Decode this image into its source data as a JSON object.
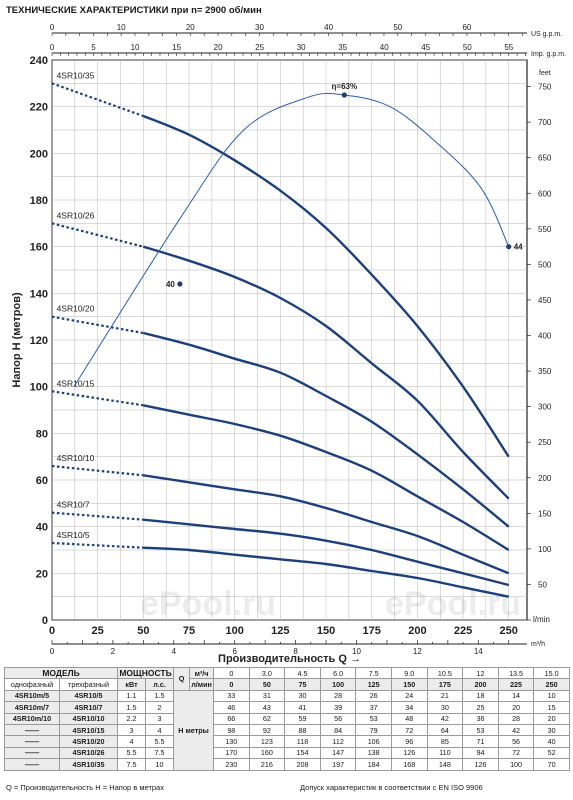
{
  "title": "ТЕХНИЧЕСКИЕ ХАРАКТЕРИСТИКИ при n= 2900 об/мин",
  "chart_data": {
    "type": "line",
    "title": "ТЕХНИЧЕСКИЕ ХАРАКТЕРИСТИКИ при n= 2900 об/мин",
    "xlabel": "Производительность Q",
    "ylabel": "Напор H  (метров)",
    "xlim": [
      0,
      260
    ],
    "ylim": [
      0,
      240
    ],
    "x_ticks": [
      0,
      25,
      50,
      75,
      100,
      125,
      150,
      175,
      200,
      225,
      250
    ],
    "y_ticks": [
      0,
      20,
      40,
      60,
      80,
      100,
      120,
      140,
      160,
      180,
      200,
      220,
      240
    ],
    "x_unit": "l/min",
    "grid": true,
    "secondary_axes": {
      "m3h": {
        "label": "m³/h",
        "ticks": [
          0,
          2,
          4,
          6,
          8,
          10,
          12,
          14
        ]
      },
      "us_gpm": {
        "label": "US g.p.m.",
        "ticks": [
          0,
          10,
          20,
          30,
          40,
          50,
          60
        ]
      },
      "imp_gpm": {
        "label": "Imp. g.p.m.",
        "ticks": [
          0,
          5,
          10,
          15,
          20,
          25,
          30,
          35,
          40,
          45,
          50,
          55
        ]
      },
      "feet": {
        "label": "feet",
        "ticks": [
          0,
          50,
          100,
          150,
          200,
          250,
          300,
          350,
          400,
          450,
          500,
          550,
          600,
          650,
          700,
          750
        ]
      }
    },
    "x": [
      0,
      50,
      75,
      100,
      125,
      150,
      175,
      200,
      225,
      250
    ],
    "series": [
      {
        "name": "4SR10/35",
        "values": [
          230,
          216,
          208,
          197,
          184,
          168,
          148,
          126,
          100,
          70
        ]
      },
      {
        "name": "4SR10/26",
        "values": [
          170,
          160,
          154,
          147,
          138,
          126,
          110,
          94,
          72,
          52
        ]
      },
      {
        "name": "4SR10/20",
        "values": [
          130,
          123,
          118,
          112,
          106,
          96,
          85,
          71,
          56,
          40
        ]
      },
      {
        "name": "4SR10/15",
        "values": [
          98,
          92,
          88,
          84,
          79,
          72,
          64,
          53,
          42,
          30
        ]
      },
      {
        "name": "4SR10/10",
        "values": [
          66,
          62,
          59,
          56,
          53,
          48,
          42,
          36,
          28,
          20
        ]
      },
      {
        "name": "4SR10/7",
        "values": [
          46,
          43,
          41,
          39,
          37,
          34,
          30,
          25,
          20,
          15
        ]
      },
      {
        "name": "4SR10/5",
        "values": [
          33,
          31,
          30,
          28,
          26,
          24,
          21,
          18,
          14,
          10
        ]
      }
    ],
    "efficiency": {
      "points": [
        [
          12,
          100
        ],
        [
          70,
          172
        ],
        [
          105,
          210
        ],
        [
          140,
          224
        ],
        [
          160,
          225
        ],
        [
          185,
          220
        ],
        [
          210,
          205
        ],
        [
          235,
          185
        ],
        [
          250,
          160
        ]
      ],
      "markers": [
        {
          "label": "40",
          "x": 70,
          "y": 144
        },
        {
          "label": "η=63%",
          "x": 160,
          "y": 225
        },
        {
          "label": "44",
          "x": 250,
          "y": 160
        }
      ]
    }
  },
  "table": {
    "model_header": "МОДЕЛЬ",
    "power_header": "МОЩНОСТЬ",
    "single_phase": "однофазный",
    "three_phase": "трехфазный",
    "kw": "кВт",
    "hp": "л.с.",
    "q_label": "Q",
    "m3h_unit": "м³/ч",
    "lmin_unit": "л/мин",
    "h_label": "H метры",
    "m3h_values": [
      "0",
      "3.0",
      "4.5",
      "6.0",
      "7.5",
      "9.0",
      "10.5",
      "12",
      "13.5",
      "15.0"
    ],
    "lmin_values": [
      "0",
      "50",
      "75",
      "100",
      "125",
      "150",
      "175",
      "200",
      "225",
      "250"
    ],
    "rows": [
      {
        "single": "4SR10m/5",
        "three": "4SR10/5",
        "kw": "1.1",
        "hp": "1.5",
        "h": [
          "33",
          "31",
          "30",
          "28",
          "26",
          "24",
          "21",
          "18",
          "14",
          "10"
        ]
      },
      {
        "single": "4SR10m/7",
        "three": "4SR10/7",
        "kw": "1.5",
        "hp": "2",
        "h": [
          "46",
          "43",
          "41",
          "39",
          "37",
          "34",
          "30",
          "25",
          "20",
          "15"
        ]
      },
      {
        "single": "4SR10m/10",
        "three": "4SR10/10",
        "kw": "2.2",
        "hp": "3",
        "h": [
          "66",
          "62",
          "59",
          "56",
          "53",
          "48",
          "42",
          "36",
          "28",
          "20"
        ]
      },
      {
        "single": "——",
        "three": "4SR10/15",
        "kw": "3",
        "hp": "4",
        "h": [
          "98",
          "92",
          "88",
          "84",
          "79",
          "72",
          "64",
          "53",
          "42",
          "30"
        ]
      },
      {
        "single": "——",
        "three": "4SR10/20",
        "kw": "4",
        "hp": "5.5",
        "h": [
          "130",
          "123",
          "118",
          "112",
          "106",
          "96",
          "85",
          "71",
          "56",
          "40"
        ]
      },
      {
        "single": "——",
        "three": "4SR10/26",
        "kw": "5.5",
        "hp": "7.5",
        "h": [
          "170",
          "160",
          "154",
          "147",
          "138",
          "126",
          "110",
          "94",
          "72",
          "52"
        ]
      },
      {
        "single": "——",
        "three": "4SR10/35",
        "kw": "7.5",
        "hp": "10",
        "h": [
          "230",
          "216",
          "208",
          "197",
          "184",
          "168",
          "148",
          "126",
          "100",
          "70"
        ]
      }
    ]
  },
  "footer": {
    "left": "Q = Производительность   H = Напор в метрах",
    "right": "Допуск характеристик в соответствии с EN ISO 9906"
  },
  "watermark": "ePool.ru",
  "colors": {
    "curve": "#1d3f7a",
    "grid": "#b5b5b5",
    "axis": "#222222"
  }
}
